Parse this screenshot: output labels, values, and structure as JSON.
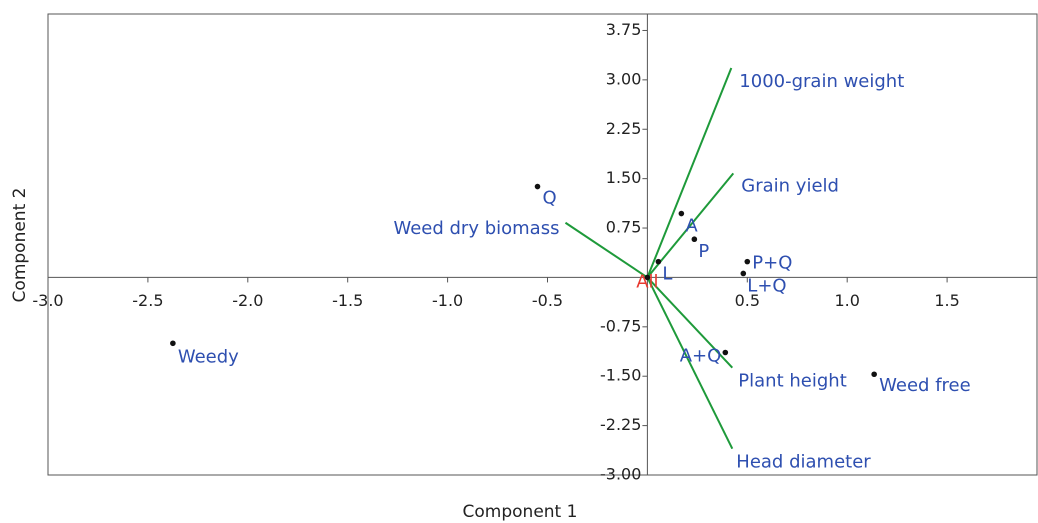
{
  "chart_data": {
    "type": "biplot",
    "x_label": "Component 1",
    "y_label": "Component 2",
    "xlim": [
      -3.0,
      1.95
    ],
    "ylim": [
      -3.0,
      4.0
    ],
    "xticks": [
      {
        "value": -3.0,
        "label": "-3.0"
      },
      -2.5,
      {
        "value": -2.0,
        "label": "-2.0"
      },
      -1.5,
      {
        "value": -1.0,
        "label": "-1.0"
      },
      -0.5,
      0.5,
      {
        "value": 1.0,
        "label": "1.0"
      },
      1.5
    ],
    "yticks": [
      3.75,
      {
        "value": 3.0,
        "label": "3.00"
      },
      2.25,
      {
        "value": 1.5,
        "label": "1.50"
      },
      0.75,
      -0.75,
      {
        "value": -1.5,
        "label": "-1.50"
      },
      -2.25,
      {
        "value": -3.0,
        "label": "-3.00"
      }
    ],
    "points": {
      "labels": [
        "Q",
        "Weedy",
        "A",
        "P",
        "L",
        "P+Q",
        "L+Q",
        "A+Q",
        "Weed free",
        "All"
      ],
      "x": [
        -0.55,
        -2.375,
        0.17,
        0.235,
        0.055,
        0.5,
        0.48,
        0.39,
        1.135,
        0
      ],
      "y": [
        1.38,
        -1.0,
        0.97,
        0.58,
        0.24,
        0.24,
        0.06,
        -1.14,
        -1.47,
        0
      ],
      "label_colors": [
        "#2e4fb0",
        "#2e4fb0",
        "#2e4fb0",
        "#2e4fb0",
        "#2e4fb0",
        "#2e4fb0",
        "#2e4fb0",
        "#2e4fb0",
        "#2e4fb0",
        "#e8392f"
      ]
    },
    "vectors": {
      "labels": [
        "1000-grain weight",
        "Grain yield",
        "Weed dry biomass",
        "Plant height",
        "Head diameter"
      ],
      "x": [
        0.42,
        0.43,
        -0.41,
        0.425,
        0.425
      ],
      "y": [
        3.18,
        1.58,
        0.83,
        -1.37,
        -2.6
      ],
      "color": "#1e9a3a",
      "label_color": "#2e4fb0"
    }
  }
}
